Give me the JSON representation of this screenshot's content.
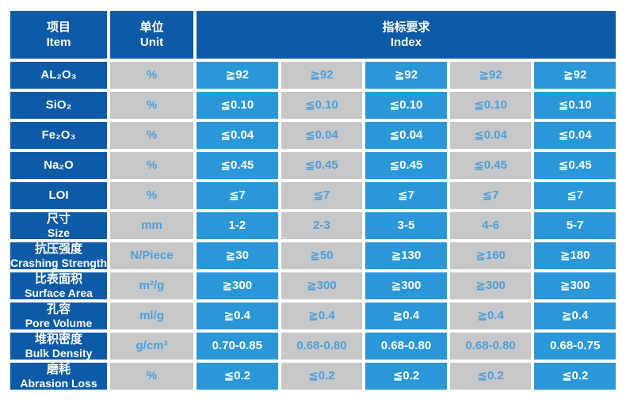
{
  "colors": {
    "dark_blue": "#0d5ba6",
    "data_blue": "#2997d8",
    "cell_gray": "#c6c7c9",
    "blue_text": "#4d9fd9",
    "page_bg": "#ffffff"
  },
  "table": {
    "header": {
      "item_zh": "项目",
      "item_en": "Item",
      "unit_zh": "单位",
      "unit_en": "Unit",
      "index_zh": "指标要求",
      "index_en": "Index"
    },
    "rows": [
      {
        "label": "AL₂O₃",
        "label2": "",
        "unit": "%",
        "values": [
          "≧92",
          "≧92",
          "≧92",
          "≧92",
          "≧92"
        ]
      },
      {
        "label": "SiO₂",
        "label2": "",
        "unit": "%",
        "values": [
          "≦0.10",
          "≦0.10",
          "≦0.10",
          "≦0.10",
          "≦0.10"
        ]
      },
      {
        "label": "Fe₂O₃",
        "label2": "",
        "unit": "%",
        "values": [
          "≦0.04",
          "≦0.04",
          "≦0.04",
          "≦0.04",
          "≦0.04"
        ]
      },
      {
        "label": "Na₂O",
        "label2": "",
        "unit": "%",
        "values": [
          "≦0.45",
          "≦0.45",
          "≦0.45",
          "≦0.45",
          "≦0.45"
        ]
      },
      {
        "label": "LOI",
        "label2": "",
        "unit": "%",
        "values": [
          "≦7",
          "≦7",
          "≦7",
          "≦7",
          "≦7"
        ]
      },
      {
        "label": "尺寸",
        "label2": "Size",
        "unit": "mm",
        "values": [
          "1-2",
          "2-3",
          "3-5",
          "4-6",
          "5-7"
        ]
      },
      {
        "label": "抗压强度",
        "label2": "Crashing Strength",
        "unit": "N/Piece",
        "values": [
          "≧30",
          "≧50",
          "≧130",
          "≧160",
          "≧180"
        ]
      },
      {
        "label": "比表面积",
        "label2": "Surface Area",
        "unit": "m²/g",
        "values": [
          "≧300",
          "≧300",
          "≧300",
          "≧300",
          "≧300"
        ]
      },
      {
        "label": "孔容",
        "label2": "Pore Volume",
        "unit": "ml/g",
        "values": [
          "≧0.4",
          "≧0.4",
          "≧0.4",
          "≧0.4",
          "≧0.4"
        ]
      },
      {
        "label": "堆积密度",
        "label2": "Bulk Density",
        "unit": "g/cm³",
        "values": [
          "0.70-0.85",
          "0.68-0.80",
          "0.68-0.80",
          "0.68-0.80",
          "0.68-0.75"
        ]
      },
      {
        "label": "磨耗",
        "label2": "Abrasion Loss",
        "unit": "%",
        "values": [
          "≦0.2",
          "≦0.2",
          "≦0.2",
          "≦0.2",
          "≦0.2"
        ]
      }
    ]
  }
}
